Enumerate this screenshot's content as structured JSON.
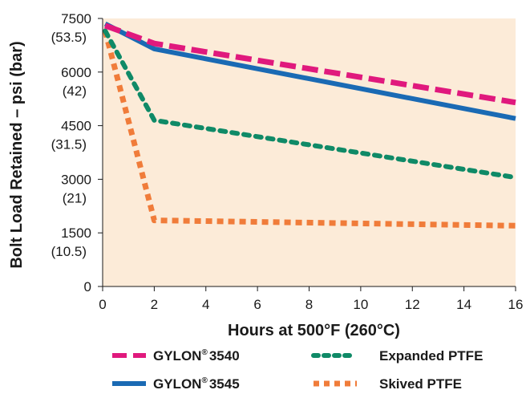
{
  "chart_data": {
    "type": "line",
    "title": "",
    "xlabel": "Hours at 500°F (260°C)",
    "ylabel": "Bolt Load Retained – psi (bar)",
    "xlim": [
      0,
      16
    ],
    "ylim": [
      0,
      7500
    ],
    "x_ticks": [
      {
        "value": 0,
        "label": "0"
      },
      {
        "value": 2,
        "label": "2"
      },
      {
        "value": 4,
        "label": "4"
      },
      {
        "value": 6,
        "label": "6"
      },
      {
        "value": 8,
        "label": "8"
      },
      {
        "value": 10,
        "label": "10"
      },
      {
        "value": 12,
        "label": "12"
      },
      {
        "value": 14,
        "label": "14"
      },
      {
        "value": 16,
        "label": "16"
      }
    ],
    "y_ticks": [
      {
        "value": 7500,
        "label": "7500",
        "sublabel": "(53.5)"
      },
      {
        "value": 6000,
        "label": "6000",
        "sublabel": "(42)"
      },
      {
        "value": 4500,
        "label": "4500",
        "sublabel": "(31.5)"
      },
      {
        "value": 3000,
        "label": "3000",
        "sublabel": "(21)"
      },
      {
        "value": 1500,
        "label": "1500",
        "sublabel": "(10.5)"
      },
      {
        "value": 0,
        "label": "0",
        "sublabel": ""
      }
    ],
    "grid": false,
    "background": "#fcebd8",
    "legend_position": "bottom",
    "series": [
      {
        "name": "GYLON® 3540",
        "color": "#e0197d",
        "style": "dashed",
        "points": [
          [
            0.1,
            7300
          ],
          [
            2,
            6800
          ],
          [
            16,
            5150
          ]
        ]
      },
      {
        "name": "GYLON® 3545",
        "color": "#1a6ab4",
        "style": "solid",
        "points": [
          [
            0.1,
            7350
          ],
          [
            2,
            6650
          ],
          [
            16,
            4700
          ]
        ]
      },
      {
        "name": "Expanded PTFE",
        "color": "#0f8a67",
        "style": "dotted",
        "points": [
          [
            0.1,
            7150
          ],
          [
            2,
            4650
          ],
          [
            16,
            3050
          ]
        ]
      },
      {
        "name": "Skived PTFE",
        "color": "#f07c3a",
        "style": "square-dotted",
        "points": [
          [
            0.1,
            7150
          ],
          [
            2,
            1850
          ],
          [
            16,
            1700
          ]
        ]
      }
    ]
  },
  "legend": {
    "items": [
      {
        "brand": "GYLON",
        "reg": "®",
        "model": "3540"
      },
      {
        "brand": "GYLON",
        "reg": "®",
        "model": "3545"
      },
      {
        "label": "Expanded PTFE"
      },
      {
        "label": "Skived PTFE"
      }
    ]
  }
}
